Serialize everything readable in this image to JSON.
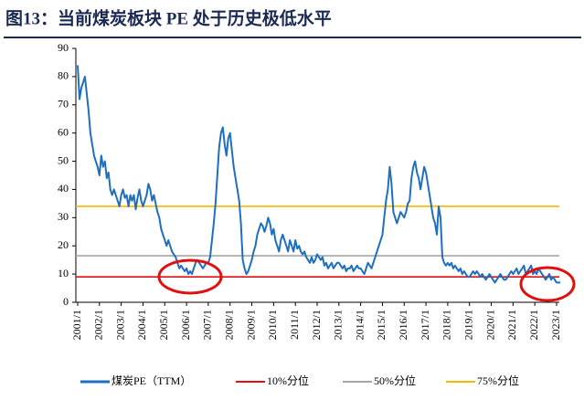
{
  "chart_data": {
    "type": "line",
    "title": "图13：当前煤炭板块 PE 处于历史极低水平",
    "categories": [
      "2001/1",
      null,
      null,
      null,
      null,
      null,
      null,
      null,
      null,
      null,
      null,
      null,
      "2002/1",
      null,
      null,
      null,
      null,
      null,
      null,
      null,
      null,
      null,
      null,
      null,
      "2003/1",
      null,
      null,
      null,
      null,
      null,
      null,
      null,
      null,
      null,
      null,
      null,
      "2004/1",
      null,
      null,
      null,
      null,
      null,
      null,
      null,
      null,
      null,
      null,
      null,
      "2005/1",
      null,
      null,
      null,
      null,
      null,
      null,
      null,
      null,
      null,
      null,
      null,
      "2006/1",
      null,
      null,
      null,
      null,
      null,
      null,
      null,
      null,
      null,
      null,
      null,
      "2007/1",
      null,
      null,
      null,
      null,
      null,
      null,
      null,
      null,
      null,
      null,
      null,
      "2008/1",
      null,
      null,
      null,
      null,
      null,
      null,
      null,
      null,
      null,
      null,
      null,
      "2009/1",
      null,
      null,
      null,
      null,
      null,
      null,
      null,
      null,
      null,
      null,
      null,
      "2010/1",
      null,
      null,
      null,
      null,
      null,
      null,
      null,
      null,
      null,
      null,
      null,
      "2011/1",
      null,
      null,
      null,
      null,
      null,
      null,
      null,
      null,
      null,
      null,
      null,
      "2012/1",
      null,
      null,
      null,
      null,
      null,
      null,
      null,
      null,
      null,
      null,
      null,
      "2013/1",
      null,
      null,
      null,
      null,
      null,
      null,
      null,
      null,
      null,
      null,
      null,
      "2014/1",
      null,
      null,
      null,
      null,
      null,
      null,
      null,
      null,
      null,
      null,
      null,
      "2015/1",
      null,
      null,
      null,
      null,
      null,
      null,
      null,
      null,
      null,
      null,
      null,
      "2016/1",
      null,
      null,
      null,
      null,
      null,
      null,
      null,
      null,
      null,
      null,
      null,
      "2017/1",
      null,
      null,
      null,
      null,
      null,
      null,
      null,
      null,
      null,
      null,
      null,
      "2018/1",
      null,
      null,
      null,
      null,
      null,
      null,
      null,
      null,
      null,
      null,
      null,
      "2019/1",
      null,
      null,
      null,
      null,
      null,
      null,
      null,
      null,
      null,
      null,
      null,
      "2020/1",
      null,
      null,
      null,
      null,
      null,
      null,
      null,
      null,
      null,
      null,
      null,
      "2021/1",
      null,
      null,
      null,
      null,
      null,
      null,
      null,
      null,
      null,
      null,
      null,
      "2022/1",
      null,
      null,
      null,
      null,
      null,
      null,
      null,
      null,
      null,
      null,
      null,
      "2023/1",
      null,
      null
    ],
    "series": [
      {
        "name": "煤炭PE（TTM）",
        "color": "#1f6fc0",
        "values": [
          84,
          72,
          76,
          78,
          80,
          74,
          68,
          60,
          56,
          52,
          50,
          48,
          45,
          52,
          48,
          50,
          44,
          46,
          40,
          38,
          40,
          38,
          36,
          34,
          38,
          40,
          37,
          38,
          34,
          38,
          36,
          38,
          33,
          37,
          40,
          36,
          34,
          36,
          38,
          42,
          40,
          36,
          38,
          35,
          32,
          30,
          26,
          24,
          22,
          20,
          22,
          20,
          18,
          17,
          16,
          14,
          12,
          13,
          12,
          11,
          12,
          10,
          11,
          10,
          12,
          14,
          15,
          14,
          13,
          12,
          13,
          14,
          14,
          16,
          22,
          28,
          35,
          45,
          55,
          60,
          62,
          56,
          52,
          58,
          60,
          54,
          48,
          44,
          40,
          36,
          28,
          15,
          12,
          10,
          11,
          13,
          15,
          18,
          20,
          24,
          26,
          28,
          27,
          25,
          27,
          30,
          28,
          24,
          26,
          22,
          20,
          18,
          22,
          24,
          22,
          20,
          18,
          22,
          20,
          18,
          22,
          19,
          20,
          18,
          17,
          18,
          16,
          15,
          14,
          16,
          14,
          15,
          17,
          16,
          15,
          16,
          13,
          14,
          12,
          13,
          14,
          12,
          13,
          14,
          14,
          13,
          12,
          13,
          11,
          12,
          12,
          13,
          11,
          12,
          13,
          12,
          12,
          11,
          10,
          12,
          14,
          13,
          12,
          14,
          16,
          18,
          20,
          22,
          24,
          30,
          36,
          40,
          48,
          42,
          32,
          30,
          28,
          30,
          32,
          31,
          30,
          32,
          35,
          36,
          44,
          48,
          50,
          46,
          44,
          40,
          44,
          48,
          46,
          42,
          38,
          34,
          30,
          28,
          24,
          34,
          30,
          16,
          14,
          13,
          14,
          13,
          14,
          12,
          13,
          12,
          11,
          12,
          10,
          11,
          10,
          9,
          9,
          10,
          11,
          10,
          11,
          10,
          9,
          10,
          9,
          8,
          9,
          10,
          9,
          8,
          7,
          8,
          9,
          10,
          9,
          8,
          8,
          9,
          10,
          11,
          10,
          11,
          12,
          10,
          11,
          12,
          13,
          10,
          11,
          12,
          13,
          10,
          11,
          10,
          12,
          11,
          10,
          9,
          8,
          9,
          10,
          8,
          9,
          8,
          7,
          7,
          7
        ]
      }
    ],
    "reference_lines": [
      {
        "name": "10%分位",
        "color": "#e01010",
        "value": 9
      },
      {
        "name": "50%分位",
        "color": "#a6a6a6",
        "value": 16.5
      },
      {
        "name": "75%分位",
        "color": "#f5b800",
        "value": 34
      }
    ],
    "ylim": [
      0,
      90
    ],
    "yticks": [
      0,
      10,
      20,
      30,
      40,
      50,
      60,
      70,
      80,
      90
    ],
    "legend": "bottom"
  }
}
